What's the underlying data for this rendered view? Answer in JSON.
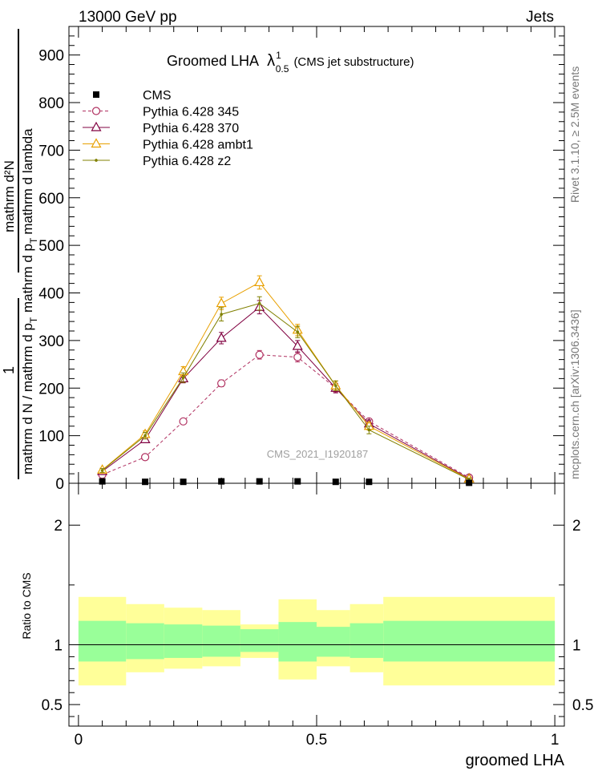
{
  "header": {
    "left": "13000 GeV pp",
    "right": "Jets"
  },
  "side_labels": {
    "rivet": "Rivet 3.1.10, ≥ 2.5M events",
    "mcplots": "mcplots.cern.ch [arXiv:1306.3436]"
  },
  "watermark": "CMS_2021_I1920187",
  "chart_data": {
    "type": "line",
    "title": "Groomed LHA",
    "title_lambda": "λ",
    "title_sup": "1",
    "title_sub": "0.5",
    "title_suffix": "(CMS jet substructure)",
    "xlabel": "groomed LHA",
    "ylabel": {
      "numerator_1": "1",
      "denominator_1": "mathrm d N / mathrm d p",
      "denominator_1_sub": "T",
      "numerator_2": "mathrm d²N",
      "denominator_2": "mathrm d p",
      "denominator_2_sub": "T",
      "denominator_2_tail": "mathrm d lambda"
    },
    "xlim": [
      -0.02,
      1.02
    ],
    "ylim": [
      0,
      960
    ],
    "x_ticks": [
      0,
      0.5,
      1
    ],
    "x_tick_labels": [
      "0",
      "0.5",
      "1"
    ],
    "y_ticks": [
      0,
      100,
      200,
      300,
      400,
      500,
      600,
      700,
      800,
      900
    ],
    "y_tick_labels": [
      "0",
      "100",
      "200",
      "300",
      "400",
      "500",
      "600",
      "700",
      "800",
      "900"
    ],
    "legend_position": "top-left",
    "x": [
      0.05,
      0.14,
      0.22,
      0.3,
      0.38,
      0.46,
      0.54,
      0.61,
      0.82
    ],
    "series": [
      {
        "name": "CMS",
        "color": "#000000",
        "marker": "square",
        "values": [
          4,
          3,
          3,
          4,
          4,
          4,
          3,
          3,
          1
        ]
      },
      {
        "name": "Pythia 6.428 345",
        "color": "#b03060",
        "marker": "circle",
        "dashed": true,
        "values": [
          18,
          55,
          130,
          210,
          270,
          265,
          200,
          130,
          12
        ],
        "errors": [
          3,
          4,
          5,
          7,
          9,
          10,
          8,
          6,
          3
        ]
      },
      {
        "name": "Pythia 6.428 370",
        "color": "#800040",
        "marker": "triangle",
        "values": [
          25,
          92,
          220,
          305,
          370,
          288,
          200,
          125,
          10
        ],
        "errors": [
          4,
          6,
          9,
          12,
          14,
          12,
          10,
          8,
          3
        ]
      },
      {
        "name": "Pythia 6.428 ambt1",
        "color": "#e8a000",
        "marker": "triangle",
        "values": [
          28,
          103,
          235,
          378,
          422,
          322,
          205,
          120,
          9
        ],
        "errors": [
          4,
          7,
          10,
          13,
          14,
          12,
          10,
          8,
          3
        ]
      },
      {
        "name": "Pythia 6.428 z2",
        "color": "#808000",
        "marker": "dot",
        "values": [
          27,
          100,
          222,
          355,
          378,
          318,
          205,
          112,
          8
        ],
        "errors": [
          4,
          7,
          10,
          14,
          14,
          12,
          10,
          8,
          3
        ]
      }
    ],
    "ratio": {
      "ylabel": "Ratio to CMS",
      "ylim": [
        0.32,
        2.35
      ],
      "y_ticks": [
        0.5,
        1,
        2
      ],
      "y_tick_labels": [
        "0.5",
        "1",
        "2"
      ],
      "bin_edges": [
        0.0,
        0.1,
        0.18,
        0.26,
        0.34,
        0.42,
        0.5,
        0.57,
        0.64,
        1.0
      ],
      "inner_band": [
        [
          0.86,
          1.2
        ],
        [
          0.88,
          1.18
        ],
        [
          0.89,
          1.17
        ],
        [
          0.9,
          1.16
        ],
        [
          0.94,
          1.13
        ],
        [
          0.86,
          1.19
        ],
        [
          0.9,
          1.15
        ],
        [
          0.89,
          1.18
        ],
        [
          0.86,
          1.2
        ]
      ],
      "outer_band": [
        [
          0.66,
          1.4
        ],
        [
          0.77,
          1.34
        ],
        [
          0.8,
          1.31
        ],
        [
          0.82,
          1.29
        ],
        [
          0.89,
          1.17
        ],
        [
          0.71,
          1.38
        ],
        [
          0.82,
          1.29
        ],
        [
          0.77,
          1.34
        ],
        [
          0.66,
          1.4
        ]
      ],
      "inner_color": "#99ff99",
      "outer_color": "#ffff99"
    }
  }
}
